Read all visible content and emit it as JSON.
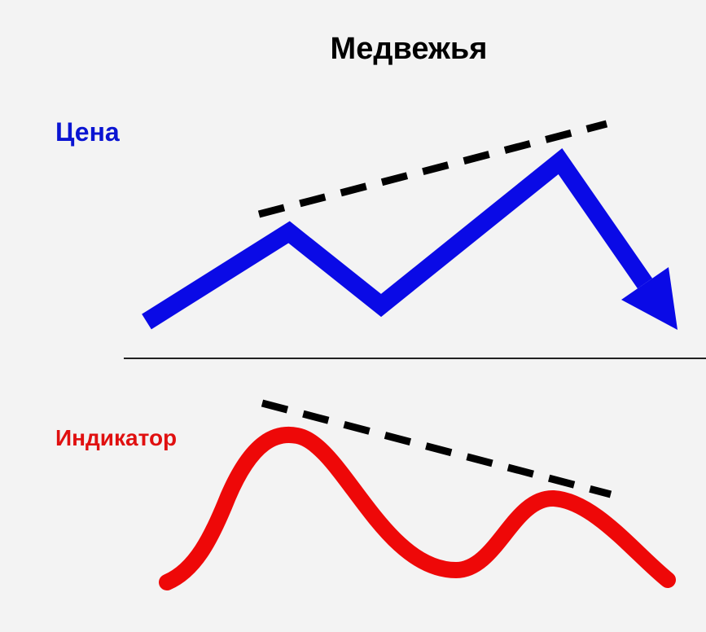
{
  "title": "Медвежья",
  "labels": {
    "price": "Цена",
    "indicator": "Индикатор"
  }
}
